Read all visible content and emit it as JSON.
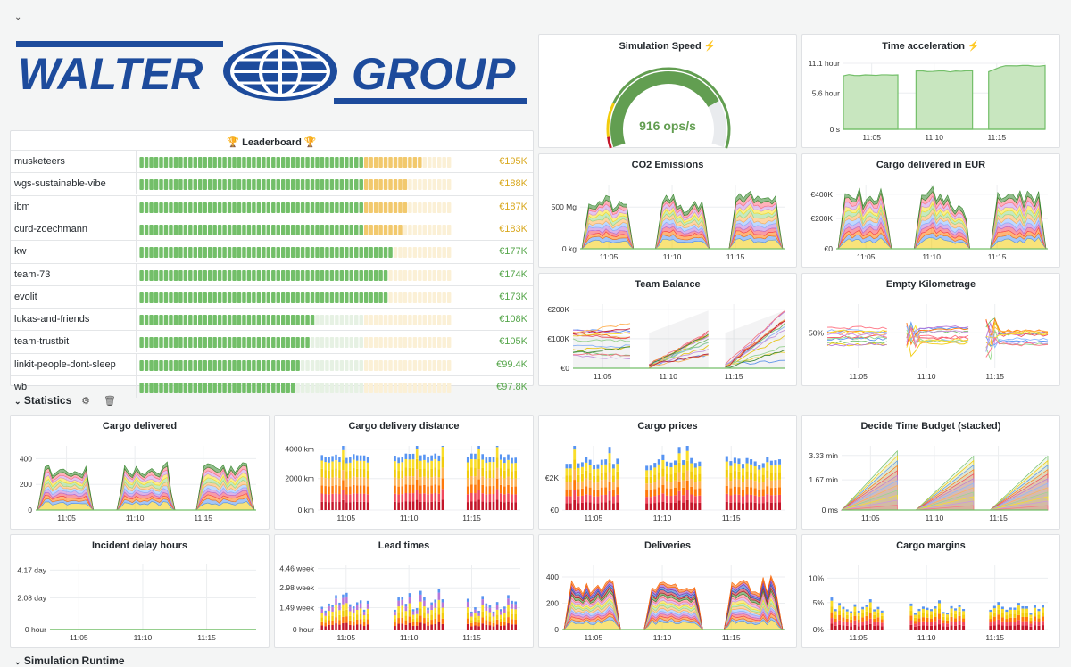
{
  "top_collapse_icon": "chevron-down-icon",
  "logo": {
    "text_left": "WALTER",
    "text_right": "GROUP",
    "color": "#1d4b9c"
  },
  "leaderboard": {
    "title": "Leaderboard",
    "title_icon": "trophy-icon",
    "colors": {
      "green": "#73bf69",
      "green_light": "#e6f1e3",
      "yellow": "#f2c96d",
      "yellow_light": "#fbf0d6"
    },
    "rows": [
      {
        "name": "musketeers",
        "value": "€195K",
        "fraction": 0.9,
        "tone": "yellow"
      },
      {
        "name": "wgs-sustainable-vibe",
        "value": "€188K",
        "fraction": 0.86,
        "tone": "yellow"
      },
      {
        "name": "ibm",
        "value": "€187K",
        "fraction": 0.86,
        "tone": "yellow"
      },
      {
        "name": "curd-zoechmann",
        "value": "€183K",
        "fraction": 0.84,
        "tone": "yellow"
      },
      {
        "name": "kw",
        "value": "€177K",
        "fraction": 0.81,
        "tone": "green"
      },
      {
        "name": "team-73",
        "value": "€174K",
        "fraction": 0.8,
        "tone": "green"
      },
      {
        "name": "evolit",
        "value": "€173K",
        "fraction": 0.79,
        "tone": "green"
      },
      {
        "name": "lukas-and-friends",
        "value": "€108K",
        "fraction": 0.56,
        "tone": "green"
      },
      {
        "name": "team-trustbit",
        "value": "€105K",
        "fraction": 0.54,
        "tone": "green"
      },
      {
        "name": "linkit-people-dont-sleep",
        "value": "€99.4K",
        "fraction": 0.51,
        "tone": "green"
      },
      {
        "name": "wb",
        "value": "€97.8K",
        "fraction": 0.5,
        "tone": "green"
      }
    ]
  },
  "simulation_speed": {
    "title": "Simulation Speed",
    "title_icon": "lightning-icon",
    "value_text": "916 ops/s",
    "fraction": 0.78,
    "color": "#629e51"
  },
  "section": {
    "title": "Statistics",
    "collapse_icon": "chevron-down-icon",
    "settings_icon": "gear-icon",
    "delete_icon": "trash-icon"
  },
  "bottom_section": {
    "title": "Simulation Runtime"
  },
  "time_labels": [
    "11:05",
    "11:10",
    "11:15"
  ],
  "series_palette": [
    "#73bf69",
    "#f2cc0c",
    "#5794f2",
    "#ff780a",
    "#f2495c",
    "#b877d9",
    "#8ab8ff",
    "#ffb357",
    "#96d98d",
    "#fade2a",
    "#ca95e5",
    "#ff7383",
    "#37872d",
    "#c4162a",
    "#1f60c4",
    "#8f3bb8",
    "#fa6400",
    "#e0b400"
  ],
  "chart_data": [
    {
      "id": "time-acceleration",
      "title": "Time acceleration",
      "title_icon": "lightning-icon",
      "type": "area",
      "yticks": [
        "11.1 hour",
        "5.6 hour",
        "0 s"
      ],
      "xticks": [
        "11:05",
        "11:10",
        "11:15"
      ]
    },
    {
      "id": "co2-emissions",
      "title": "CO2 Emissions",
      "type": "area",
      "yticks": [
        "500 Mg",
        "0 kg"
      ],
      "xticks": [
        "11:05",
        "11:10",
        "11:15"
      ]
    },
    {
      "id": "cargo-delivered-eur",
      "title": "Cargo delivered in EUR",
      "type": "area",
      "yticks": [
        "€400K",
        "€200K",
        "€0"
      ],
      "xticks": [
        "11:05",
        "11:10",
        "11:15"
      ]
    },
    {
      "id": "team-balance",
      "title": "Team Balance",
      "type": "line",
      "yticks": [
        "€200K",
        "€100K",
        "€0"
      ],
      "xticks": [
        "11:05",
        "11:10",
        "11:15"
      ]
    },
    {
      "id": "empty-kilometrage",
      "title": "Empty Kilometrage",
      "type": "line",
      "yticks": [
        "50%"
      ],
      "xticks": [
        "11:05",
        "11:10",
        "11:15"
      ]
    },
    {
      "id": "cargo-delivered",
      "title": "Cargo delivered",
      "type": "area",
      "yticks": [
        "400",
        "200",
        "0"
      ],
      "xticks": [
        "11:05",
        "11:10",
        "11:15"
      ]
    },
    {
      "id": "cargo-delivery-distance",
      "title": "Cargo delivery distance",
      "type": "bar",
      "yticks": [
        "4000 km",
        "2000 km",
        "0 km"
      ],
      "xticks": [
        "11:05",
        "11:10",
        "11:15"
      ]
    },
    {
      "id": "cargo-prices",
      "title": "Cargo prices",
      "type": "bar",
      "yticks": [
        "€2K",
        "€0"
      ],
      "xticks": [
        "11:05",
        "11:10",
        "11:15"
      ]
    },
    {
      "id": "decide-time-budget",
      "title": "Decide Time Budget (stacked)",
      "type": "area",
      "yticks": [
        "3.33 min",
        "1.67 min",
        "0 ms"
      ],
      "xticks": [
        "11:05",
        "11:10",
        "11:15"
      ]
    },
    {
      "id": "incident-delay-hours",
      "title": "Incident delay hours",
      "type": "line",
      "yticks": [
        "4.17 day",
        "2.08 day",
        "0 hour"
      ],
      "xticks": [
        "11:05",
        "11:10",
        "11:15"
      ]
    },
    {
      "id": "lead-times",
      "title": "Lead times",
      "type": "bar",
      "yticks": [
        "4.46 week",
        "2.98 week",
        "1.49 week",
        "0 hour"
      ],
      "xticks": [
        "11:05",
        "11:10",
        "11:15"
      ]
    },
    {
      "id": "deliveries",
      "title": "Deliveries",
      "type": "area",
      "yticks": [
        "400",
        "200",
        "0"
      ],
      "xticks": [
        "11:05",
        "11:10",
        "11:15"
      ]
    },
    {
      "id": "cargo-margins",
      "title": "Cargo margins",
      "type": "bar",
      "yticks": [
        "10%",
        "5%",
        "0%"
      ],
      "xticks": [
        "11:05",
        "11:10",
        "11:15"
      ]
    }
  ]
}
